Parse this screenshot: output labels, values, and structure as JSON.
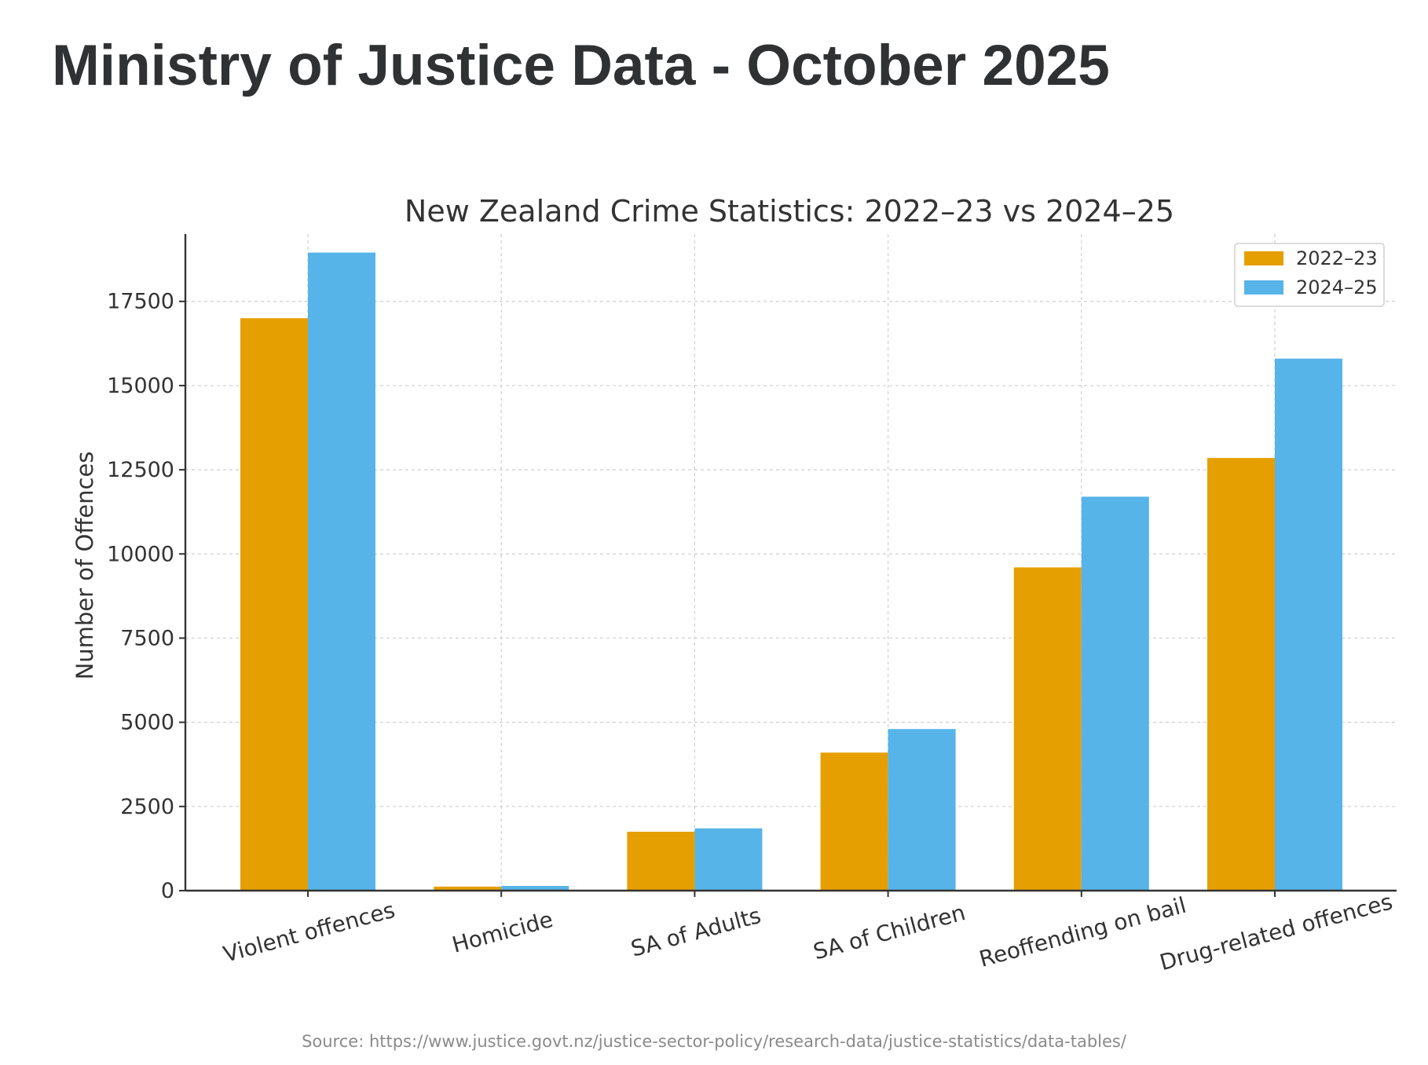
{
  "page": {
    "title": "Ministry of Justice Data - October 2025",
    "source_note": "Source: https://www.justice.govt.nz/justice-sector-policy/research-data/justice-statistics/data-tables/"
  },
  "colors": {
    "series_2022_23": "#e69f00",
    "series_2024_25": "#56b4e9"
  },
  "chart_data": {
    "type": "bar",
    "title": "New Zealand Crime Statistics: 2022–23 vs 2024–25",
    "xlabel": "",
    "ylabel": "Number of Offences",
    "categories": [
      "Violent offences",
      "Homicide",
      "SA of Adults",
      "SA of Children",
      "Reoffending on bail",
      "Drug-related offences"
    ],
    "series": [
      {
        "name": "2022–23",
        "values": [
          17000,
          120,
          1750,
          4100,
          9600,
          12850
        ]
      },
      {
        "name": "2024–25",
        "values": [
          18950,
          140,
          1850,
          4800,
          11700,
          15800
        ]
      }
    ],
    "yticks": [
      0,
      2500,
      5000,
      7500,
      10000,
      12500,
      15000,
      17500
    ],
    "ylim": [
      0,
      19500
    ],
    "grid": true,
    "legend_position": "top-right"
  }
}
